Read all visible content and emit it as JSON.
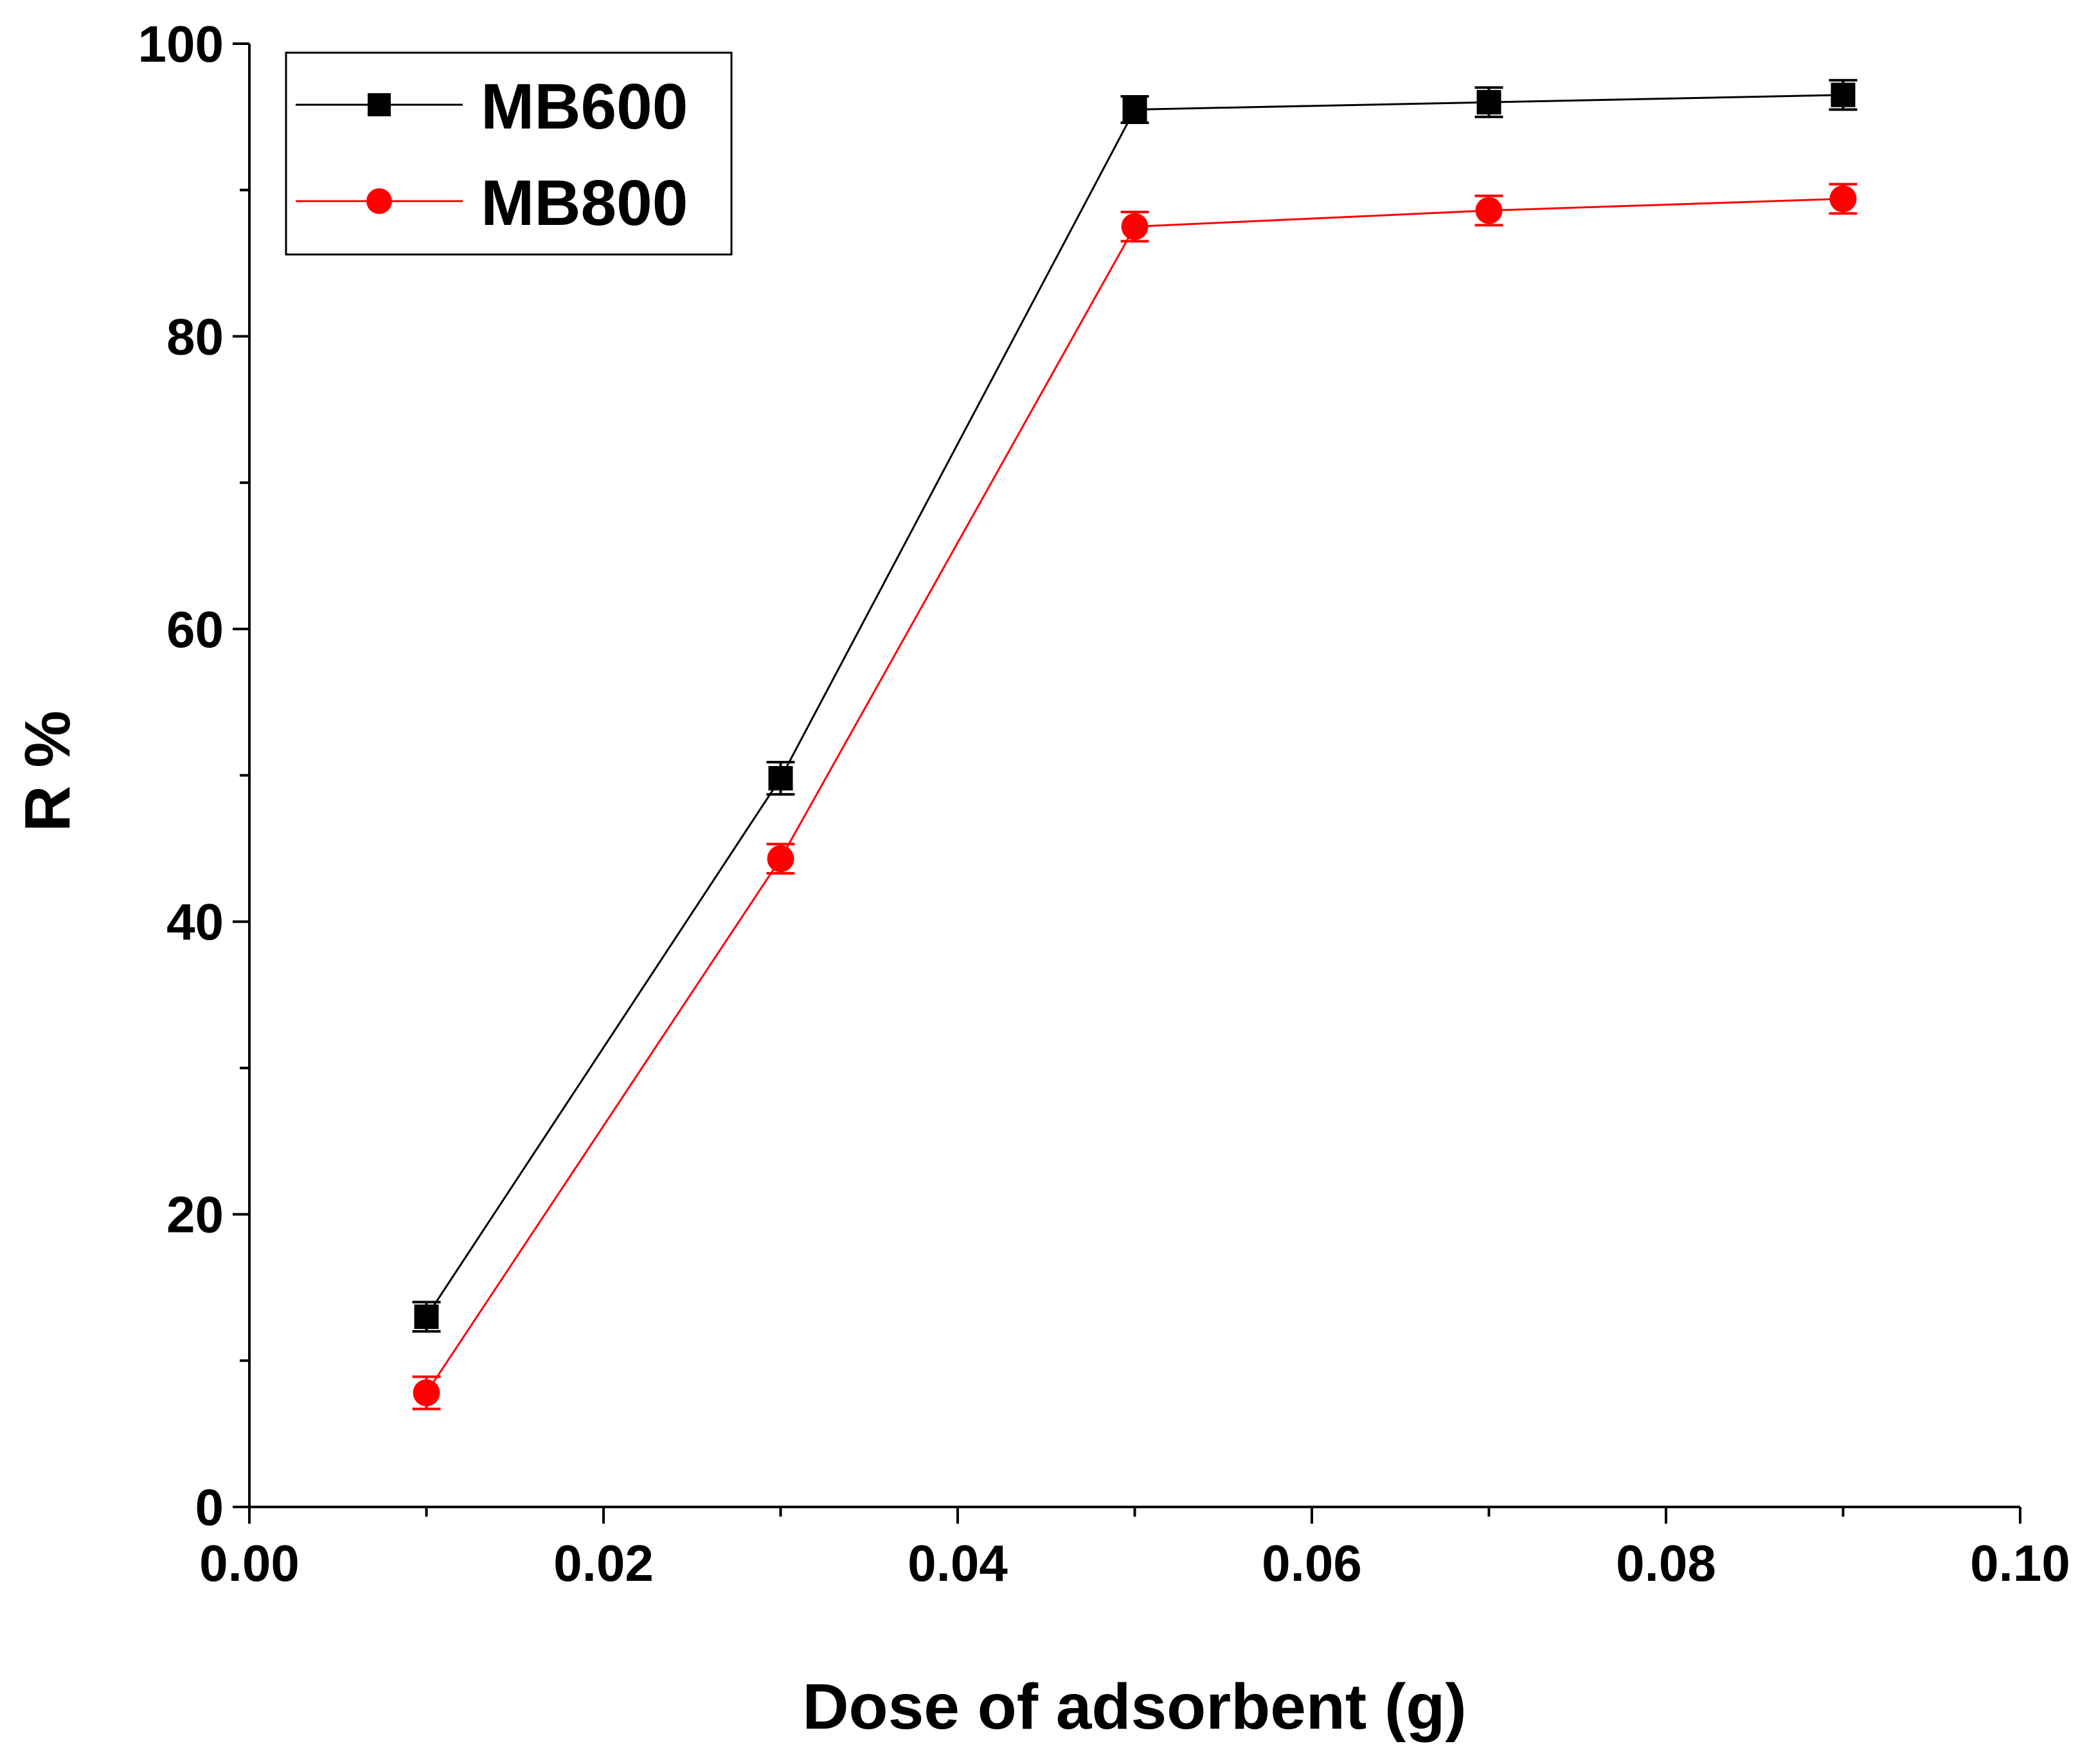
{
  "chart_data": {
    "type": "line",
    "title": "",
    "xlabel": "Dose of adsorbent (g)",
    "ylabel": "R %",
    "xlim": [
      0.0,
      0.1
    ],
    "ylim": [
      0,
      100
    ],
    "x_ticks": [
      "0.00",
      "0.02",
      "0.04",
      "0.06",
      "0.08",
      "0.10"
    ],
    "y_ticks": [
      "0",
      "20",
      "40",
      "60",
      "80",
      "100"
    ],
    "grid": false,
    "legend_position": "top-left",
    "series": [
      {
        "name": "MB600",
        "color": "#000000",
        "marker": "square",
        "x": [
          0.01,
          0.03,
          0.05,
          0.07,
          0.09
        ],
        "y": [
          13.0,
          49.8,
          95.5,
          96.0,
          96.5
        ],
        "error": [
          1.0,
          1.1,
          0.9,
          1.0,
          1.0
        ]
      },
      {
        "name": "MB800",
        "color": "#ff0000",
        "marker": "circle",
        "x": [
          0.01,
          0.03,
          0.05,
          0.07,
          0.09
        ],
        "y": [
          7.8,
          44.3,
          87.5,
          88.6,
          89.4
        ],
        "error": [
          1.1,
          1.0,
          1.0,
          1.0,
          1.0
        ]
      }
    ]
  }
}
